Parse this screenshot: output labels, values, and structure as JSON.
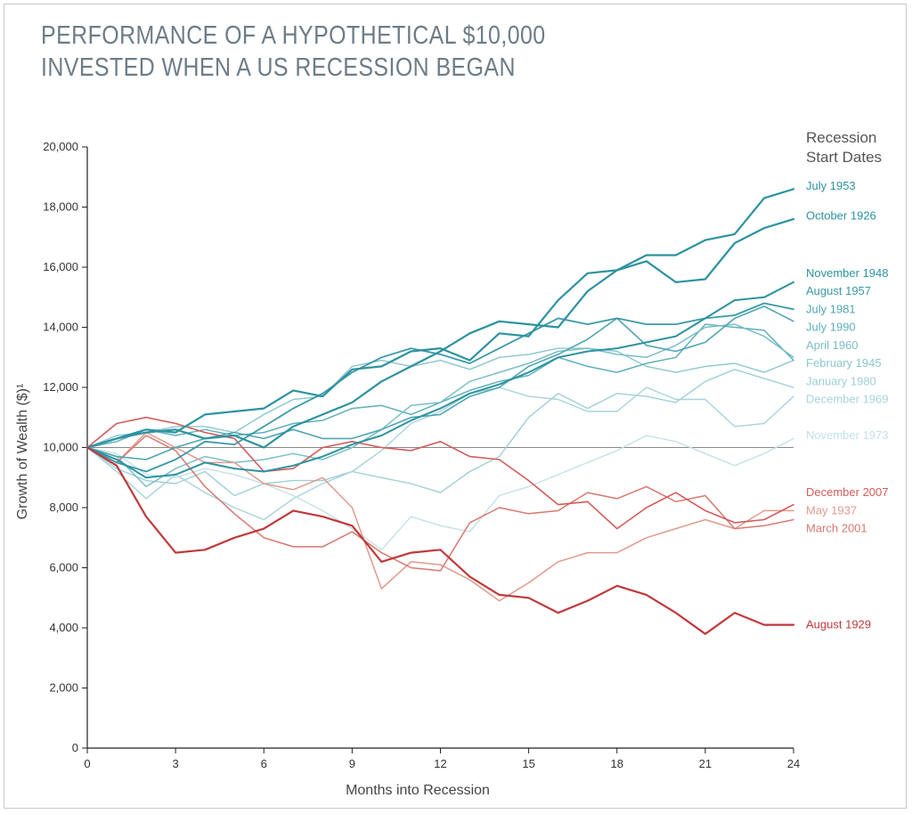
{
  "title": {
    "line1": "PERFORMANCE OF A HYPOTHETICAL $10,000",
    "line2": "INVESTED WHEN A US RECESSION BEGAN"
  },
  "colors": {
    "teal_dark": "#2c939f",
    "teal_light": "#b6dde2",
    "red_dark": "#c0393b",
    "red_light": "#e8b0a4",
    "baseline": "#888888"
  },
  "chart_data": {
    "type": "line",
    "title": "PERFORMANCE OF A HYPOTHETICAL $10,000 INVESTED WHEN A US RECESSION BEGAN",
    "xlabel": "Months into Recession",
    "ylabel": "Growth of Wealth ($)¹",
    "xlim": [
      0,
      24
    ],
    "ylim": [
      0,
      20000
    ],
    "x_ticks": [
      "0",
      "3",
      "6",
      "9",
      "12",
      "15",
      "18",
      "21",
      "24"
    ],
    "y_ticks": [
      "0",
      "2,000",
      "4,000",
      "6,000",
      "8,000",
      "10,000",
      "12,000",
      "14,000",
      "16,000",
      "18,000",
      "20,000"
    ],
    "legend_title": [
      "Recession",
      "Start Dates"
    ],
    "baseline": 10000,
    "x": [
      0,
      1,
      2,
      3,
      4,
      5,
      6,
      7,
      8,
      9,
      10,
      11,
      12,
      13,
      14,
      15,
      16,
      17,
      18,
      19,
      20,
      21,
      22,
      23,
      24
    ],
    "series": [
      {
        "name": "July 1953",
        "color": "#2c939f",
        "width": 2.2,
        "values": [
          10000,
          10300,
          10600,
          10500,
          11100,
          11200,
          11300,
          11900,
          11700,
          12600,
          12700,
          13200,
          13300,
          12900,
          13800,
          13700,
          14900,
          15800,
          15900,
          16400,
          16400,
          16900,
          17100,
          18300,
          18600
        ]
      },
      {
        "name": "October 1926",
        "color": "#2c939f",
        "width": 2.2,
        "values": [
          10000,
          10300,
          10500,
          10600,
          10300,
          10400,
          10000,
          10700,
          11100,
          11500,
          12200,
          12700,
          13200,
          13800,
          14200,
          14100,
          14000,
          15200,
          15900,
          16200,
          15500,
          15600,
          16800,
          17300,
          17600
        ]
      },
      {
        "name": "November 1948",
        "color": "#2c939f",
        "width": 2.0,
        "values": [
          10000,
          9600,
          9000,
          9100,
          9500,
          9300,
          9200,
          9400,
          9700,
          10100,
          10400,
          10900,
          11300,
          11800,
          12100,
          12500,
          13000,
          13200,
          13300,
          13500,
          13700,
          14300,
          14900,
          15000,
          15500
        ]
      },
      {
        "name": "August 1957",
        "color": "#3a9aa6",
        "width": 1.8,
        "values": [
          10000,
          9500,
          9200,
          9600,
          10200,
          10100,
          10700,
          11300,
          11800,
          12500,
          13000,
          13300,
          13100,
          12800,
          13300,
          13800,
          14300,
          14100,
          14300,
          14100,
          14100,
          14300,
          14400,
          14800,
          14600
        ]
      },
      {
        "name": "July 1981",
        "color": "#4fa6b1",
        "width": 1.6,
        "values": [
          10000,
          9700,
          9600,
          10000,
          10300,
          10500,
          10300,
          10600,
          10300,
          10300,
          10600,
          11000,
          11100,
          11700,
          12000,
          12700,
          13100,
          13600,
          14300,
          13400,
          13200,
          13500,
          14300,
          14700,
          14200
        ]
      },
      {
        "name": "July 1990",
        "color": "#5fb0ba",
        "width": 1.5,
        "values": [
          10000,
          10200,
          10600,
          10400,
          10600,
          10400,
          10500,
          10800,
          10900,
          11300,
          11400,
          11100,
          11500,
          11900,
          12200,
          12400,
          13000,
          12700,
          12500,
          12800,
          13000,
          14100,
          14000,
          13900,
          12900
        ]
      },
      {
        "name": "April 1960",
        "color": "#7bbec6",
        "width": 1.5,
        "values": [
          10000,
          9700,
          8700,
          9300,
          9700,
          9500,
          9600,
          9800,
          9600,
          10000,
          10600,
          11400,
          11500,
          12200,
          12500,
          12800,
          13200,
          13300,
          13100,
          13000,
          13400,
          14000,
          14100,
          13700,
          13000
        ]
      },
      {
        "name": "February 1945",
        "color": "#8cc7ce",
        "width": 1.4,
        "values": [
          10000,
          10400,
          10500,
          10700,
          10700,
          10500,
          11100,
          11600,
          11700,
          12700,
          12900,
          12700,
          12900,
          12600,
          13000,
          13100,
          13300,
          13300,
          13200,
          12700,
          12500,
          12700,
          12800,
          12500,
          12900
        ]
      },
      {
        "name": "January 1980",
        "color": "#9ed0d6",
        "width": 1.4,
        "values": [
          10000,
          9300,
          8900,
          8800,
          9200,
          8400,
          8800,
          8900,
          8900,
          9200,
          9000,
          8800,
          8500,
          9200,
          9700,
          11000,
          11800,
          11300,
          11800,
          11700,
          11500,
          12200,
          12600,
          12300,
          12000
        ]
      },
      {
        "name": "December 1969",
        "color": "#a8d4da",
        "width": 1.4,
        "values": [
          10000,
          9200,
          8300,
          9100,
          8500,
          8000,
          7600,
          8300,
          8800,
          9200,
          9900,
          10800,
          11200,
          11800,
          12000,
          11700,
          11600,
          11200,
          11200,
          12000,
          11600,
          11600,
          10700,
          10800,
          11700
        ]
      },
      {
        "name": "November 1973",
        "color": "#c4e2e6",
        "width": 1.4,
        "values": [
          10000,
          9800,
          9100,
          9000,
          9300,
          9100,
          8800,
          8400,
          7900,
          7300,
          6600,
          7700,
          7400,
          7200,
          8400,
          8700,
          9100,
          9500,
          9900,
          10400,
          10200,
          9800,
          9400,
          9800,
          10300
        ]
      },
      {
        "name": "December 2007",
        "color": "#d35c5a",
        "width": 1.6,
        "values": [
          10000,
          10800,
          11000,
          10800,
          10500,
          10300,
          9200,
          9300,
          10000,
          10200,
          10000,
          9900,
          10200,
          9700,
          9600,
          8900,
          8100,
          8200,
          7300,
          8000,
          8500,
          7900,
          7500,
          7600,
          8100
        ]
      },
      {
        "name": "May 1937",
        "color": "#e19a8e",
        "width": 1.5,
        "values": [
          10000,
          9500,
          10500,
          10000,
          9500,
          9500,
          8800,
          8600,
          9000,
          8000,
          5300,
          6200,
          6100,
          5600,
          4900,
          5500,
          6200,
          6500,
          6500,
          7000,
          7300,
          7600,
          7300,
          7900,
          7900
        ]
      },
      {
        "name": "March 2001",
        "color": "#d8786f",
        "width": 1.5,
        "values": [
          10000,
          9500,
          10400,
          9900,
          8700,
          7800,
          7000,
          6700,
          6700,
          7200,
          6500,
          6000,
          5900,
          7500,
          8000,
          7800,
          7900,
          8500,
          8300,
          8700,
          8200,
          8400,
          7300,
          7400,
          7600
        ]
      },
      {
        "name": "August 1929",
        "color": "#c0393b",
        "width": 2.2,
        "values": [
          10000,
          9400,
          7700,
          6500,
          6600,
          7000,
          7300,
          7900,
          7700,
          7400,
          6200,
          6500,
          6600,
          5700,
          5100,
          5000,
          4500,
          4900,
          5400,
          5100,
          4500,
          3800,
          4500,
          4100,
          4100
        ]
      }
    ],
    "label_values": {
      "July 1953": 18700,
      "October 1926": 17700,
      "November 1948": 15800,
      "August 1957": 15200,
      "July 1981": 14600,
      "July 1990": 14000,
      "April 1960": 13400,
      "February 1945": 12800,
      "January 1980": 12200,
      "December 1969": 11600,
      "November 1973": 10400,
      "December 2007": 8500,
      "May 1937": 7900,
      "March 2001": 7300,
      "August 1929": 4100
    }
  }
}
